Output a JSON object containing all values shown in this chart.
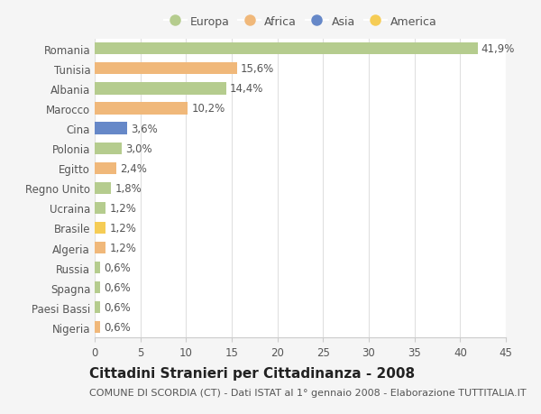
{
  "countries": [
    "Romania",
    "Tunisia",
    "Albania",
    "Marocco",
    "Cina",
    "Polonia",
    "Egitto",
    "Regno Unito",
    "Ucraina",
    "Brasile",
    "Algeria",
    "Russia",
    "Spagna",
    "Paesi Bassi",
    "Nigeria"
  ],
  "values": [
    41.9,
    15.6,
    14.4,
    10.2,
    3.6,
    3.0,
    2.4,
    1.8,
    1.2,
    1.2,
    1.2,
    0.6,
    0.6,
    0.6,
    0.6
  ],
  "labels": [
    "41,9%",
    "15,6%",
    "14,4%",
    "10,2%",
    "3,6%",
    "3,0%",
    "2,4%",
    "1,8%",
    "1,2%",
    "1,2%",
    "1,2%",
    "0,6%",
    "0,6%",
    "0,6%",
    "0,6%"
  ],
  "continents": [
    "Europa",
    "Africa",
    "Europa",
    "Africa",
    "Asia",
    "Europa",
    "Africa",
    "Europa",
    "Europa",
    "America",
    "Africa",
    "Europa",
    "Europa",
    "Europa",
    "Africa"
  ],
  "continent_colors": {
    "Europa": "#b5cc8e",
    "Africa": "#f0b87a",
    "Asia": "#6688c8",
    "America": "#f5cc55"
  },
  "legend_order": [
    "Europa",
    "Africa",
    "Asia",
    "America"
  ],
  "xlim": [
    0,
    45
  ],
  "xticks": [
    0,
    5,
    10,
    15,
    20,
    25,
    30,
    35,
    40,
    45
  ],
  "title": "Cittadini Stranieri per Cittadinanza - 2008",
  "subtitle": "COMUNE DI SCORDIA (CT) - Dati ISTAT al 1° gennaio 2008 - Elaborazione TUTTITALIA.IT",
  "background_color": "#f5f5f5",
  "plot_background": "#ffffff",
  "bar_height": 0.6,
  "title_fontsize": 11,
  "subtitle_fontsize": 8,
  "tick_fontsize": 8.5,
  "label_fontsize": 8.5
}
